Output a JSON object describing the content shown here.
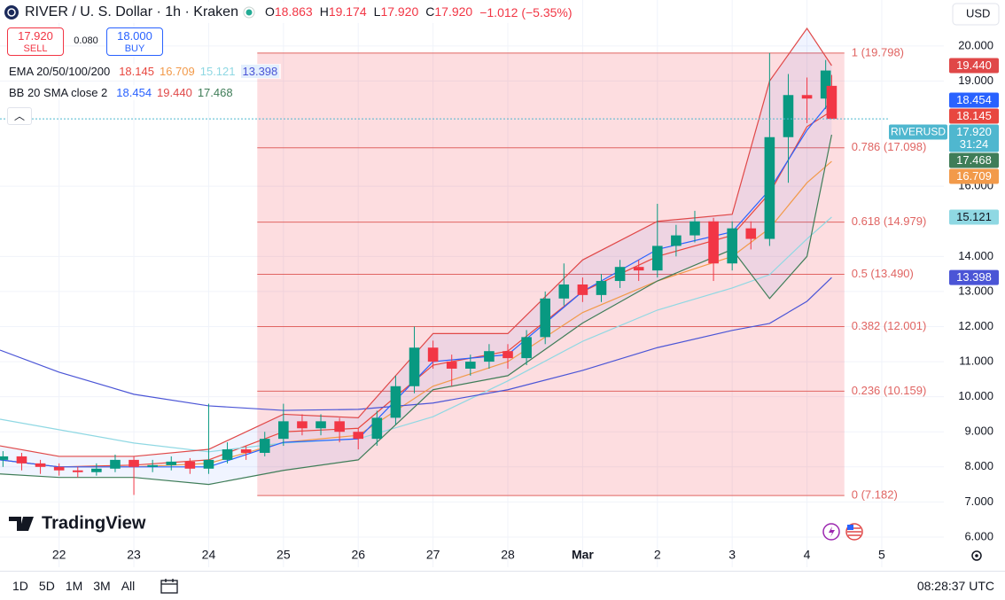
{
  "header": {
    "symbol": "RIVER / U. S. Dollar · 1h · Kraken",
    "ohlc": [
      {
        "key": "O",
        "value": "18.863"
      },
      {
        "key": "H",
        "value": "19.174"
      },
      {
        "key": "L",
        "value": "17.920"
      },
      {
        "key": "C",
        "value": "17.920"
      }
    ],
    "change": "−1.012 (−5.35%)"
  },
  "trade": {
    "sell_price": "17.920",
    "sell": "SELL",
    "spread": "0.080",
    "buy_price": "18.000",
    "buy": "BUY"
  },
  "indicators": {
    "ema": "EMA 20/50/100/200",
    "bb": "BB 20 SMA close 2"
  },
  "currency": "USD",
  "logo": "TradingView",
  "toolbar": {
    "ranges": [
      "1D",
      "5D",
      "1M",
      "3M",
      "All"
    ],
    "clock": "08:28:37 UTC"
  },
  "chart_data": {
    "type": "candlestick",
    "grid": true,
    "xlim": [
      -0.79,
      11.83
    ],
    "ylim": [
      5.14,
      21.31
    ],
    "xticks": [
      {
        "value": 0,
        "label": "22"
      },
      {
        "value": 1,
        "label": "23"
      },
      {
        "value": 2,
        "label": "24"
      },
      {
        "value": 3,
        "label": "25"
      },
      {
        "value": 4,
        "label": "26"
      },
      {
        "value": 5,
        "label": "27"
      },
      {
        "value": 6,
        "label": "28"
      },
      {
        "value": 7,
        "label": "Mar"
      },
      {
        "value": 8,
        "label": "2"
      },
      {
        "value": 9,
        "label": "3"
      },
      {
        "value": 10,
        "label": "4"
      },
      {
        "value": 11,
        "label": "5"
      }
    ],
    "yticks": [
      {
        "value": 20,
        "label": "20.000"
      },
      {
        "value": 19,
        "label": "19.000"
      },
      {
        "value": 16,
        "label": "16.000"
      },
      {
        "value": 14,
        "label": "14.000"
      },
      {
        "value": 13,
        "label": "13.000"
      },
      {
        "value": 12,
        "label": "12.000"
      },
      {
        "value": 11,
        "label": "11.000"
      },
      {
        "value": 10,
        "label": "10.000"
      },
      {
        "value": 9,
        "label": "9.000"
      },
      {
        "value": 8,
        "label": "8.000"
      },
      {
        "value": 7,
        "label": "7.000"
      },
      {
        "value": 6,
        "label": "6.000"
      }
    ],
    "up_color": "#089981",
    "down_color": "#f23645",
    "x": [
      -0.75,
      -0.5,
      -0.25,
      0,
      0.25,
      0.5,
      0.75,
      1,
      1.25,
      1.5,
      1.75,
      2,
      2.25,
      2.5,
      2.75,
      3,
      3.25,
      3.5,
      3.75,
      4,
      4.25,
      4.5,
      4.75,
      5,
      5.25,
      5.5,
      5.75,
      6,
      6.25,
      6.5,
      6.75,
      7,
      7.25,
      7.5,
      7.75,
      8,
      8.25,
      8.5,
      8.75,
      9,
      9.25,
      9.5,
      9.75,
      10,
      10.25,
      10.33
    ],
    "open": [
      8.2,
      8.3,
      8.1,
      8.0,
      7.9,
      7.85,
      7.95,
      8.2,
      8.0,
      8.05,
      8.15,
      7.95,
      8.2,
      8.5,
      8.4,
      8.8,
      9.3,
      9.1,
      9.3,
      9.0,
      8.8,
      9.4,
      10.3,
      11.4,
      11.0,
      10.8,
      11.0,
      11.3,
      11.1,
      11.7,
      12.8,
      13.2,
      12.9,
      13.3,
      13.7,
      13.6,
      14.3,
      14.6,
      15.0,
      13.8,
      14.8,
      14.5,
      17.4,
      18.6,
      18.5,
      18.863
    ],
    "high": [
      8.45,
      8.4,
      8.2,
      8.1,
      8.0,
      8.1,
      8.35,
      8.3,
      8.2,
      8.3,
      8.25,
      9.8,
      8.7,
      8.6,
      9.0,
      9.8,
      9.5,
      9.5,
      9.4,
      9.1,
      9.6,
      10.6,
      12.0,
      11.6,
      11.2,
      11.2,
      11.5,
      11.5,
      11.9,
      13.0,
      13.8,
      13.4,
      13.5,
      13.9,
      13.9,
      15.5,
      14.9,
      15.3,
      15.1,
      15.0,
      15.0,
      19.8,
      19.2,
      19.1,
      19.6,
      19.174
    ],
    "low": [
      8.0,
      7.9,
      7.8,
      7.75,
      7.7,
      7.75,
      7.85,
      7.2,
      7.85,
      7.9,
      7.8,
      7.8,
      8.1,
      8.2,
      8.3,
      8.6,
      8.9,
      8.9,
      8.7,
      8.5,
      8.6,
      9.2,
      10.1,
      10.8,
      10.3,
      10.6,
      10.8,
      10.8,
      10.9,
      11.5,
      12.6,
      12.7,
      12.7,
      13.1,
      13.3,
      13.4,
      14.0,
      14.4,
      13.3,
      13.6,
      14.2,
      14.3,
      16.1,
      17.8,
      18.2,
      17.92
    ],
    "close": [
      8.3,
      8.1,
      8.0,
      7.9,
      7.85,
      7.95,
      8.2,
      8.0,
      8.05,
      8.15,
      7.95,
      8.2,
      8.5,
      8.4,
      8.8,
      9.3,
      9.1,
      9.3,
      9.0,
      8.8,
      9.4,
      10.3,
      11.4,
      11.0,
      10.8,
      11.0,
      11.3,
      11.1,
      11.7,
      12.8,
      13.2,
      12.9,
      13.3,
      13.7,
      13.6,
      14.3,
      14.6,
      15.0,
      13.8,
      14.8,
      14.5,
      17.4,
      18.6,
      18.5,
      19.3,
      17.92
    ],
    "line_x": [
      -0.79,
      0,
      1,
      2,
      3,
      4,
      5,
      6,
      7,
      8,
      9,
      9.5,
      10,
      10.33
    ],
    "lines": [
      {
        "color": "#e8473f",
        "values": [
          8.2,
          8.0,
          8.05,
          8.2,
          9.0,
          9.1,
          10.9,
          11.3,
          13.0,
          14.0,
          14.6,
          15.8,
          17.7,
          18.145
        ]
      },
      {
        "color": "#f29a4a",
        "values": [
          8.2,
          8.0,
          8.0,
          8.1,
          8.7,
          8.9,
          10.3,
          11.0,
          12.4,
          13.3,
          14.0,
          14.8,
          16.1,
          16.709
        ]
      },
      {
        "color": "#8fd8e3",
        "values": [
          9.36,
          9.06,
          8.68,
          8.43,
          8.68,
          8.8,
          9.43,
          10.45,
          11.58,
          12.47,
          13.1,
          13.48,
          14.5,
          15.121
        ]
      },
      {
        "color": "#4b55d6",
        "values": [
          11.33,
          10.7,
          10.07,
          9.74,
          9.61,
          9.64,
          9.82,
          10.2,
          10.75,
          11.4,
          11.89,
          12.09,
          12.72,
          13.398
        ]
      },
      {
        "color": "#2962ff",
        "values": [
          8.2,
          8.0,
          8.0,
          8.0,
          8.7,
          8.8,
          11.0,
          11.2,
          13.0,
          14.2,
          14.7,
          15.9,
          17.6,
          18.454
        ]
      },
      {
        "color": "#e04848",
        "values": [
          8.6,
          8.3,
          8.3,
          8.5,
          9.5,
          9.4,
          11.8,
          11.8,
          13.9,
          15.0,
          15.2,
          19.0,
          20.5,
          19.44
        ]
      },
      {
        "color": "#3f7d58",
        "values": [
          7.8,
          7.7,
          7.7,
          7.5,
          7.9,
          8.2,
          10.2,
          10.6,
          12.1,
          13.3,
          14.2,
          12.8,
          14.0,
          17.468
        ]
      }
    ],
    "band_color": "rgba(41,98,255,0.07)",
    "fib_x": [
      2.65,
      10.5
    ],
    "fib_color": "#e06462",
    "fib_fill": "rgba(242,54,69,0.17)",
    "fib_levels": [
      {
        "value": 19.798,
        "label": "1 (19.798)"
      },
      {
        "value": 17.098,
        "label": "0.786 (17.098)"
      },
      {
        "value": 14.979,
        "label": "0.618 (14.979)"
      },
      {
        "value": 13.49,
        "label": "0.5 (13.490)"
      },
      {
        "value": 12.001,
        "label": "0.382 (12.001)"
      },
      {
        "value": 10.159,
        "label": "0.236 (10.159)"
      },
      {
        "value": 7.182,
        "label": "0 (7.182)"
      }
    ],
    "last_price": {
      "value": 17.92,
      "label": "17.920",
      "symbol": "RIVERUSD",
      "countdown": "31:24",
      "color": "#4fb7cf"
    },
    "price_labels": [
      {
        "value": 19.44,
        "label": "19.440",
        "color": "#e04848",
        "text_color": "#ffffff"
      },
      {
        "value": 18.454,
        "label": "18.454",
        "color": "#2962ff",
        "text_color": "#ffffff"
      },
      {
        "value": 18.145,
        "label": "18.145",
        "color": "#e8473f",
        "text_color": "#ffffff"
      },
      {
        "value": 17.468,
        "label": "17.468",
        "color": "#3f7d58",
        "text_color": "#ffffff"
      },
      {
        "value": 16.709,
        "label": "16.709",
        "color": "#f29a4a",
        "text_color": "#ffffff"
      },
      {
        "value": 15.121,
        "label": "15.121",
        "color": "#8fd8e3",
        "text_color": "#131722"
      },
      {
        "value": 13.398,
        "label": "13.398",
        "color": "#4b55d6",
        "text_color": "#ffffff"
      }
    ]
  }
}
